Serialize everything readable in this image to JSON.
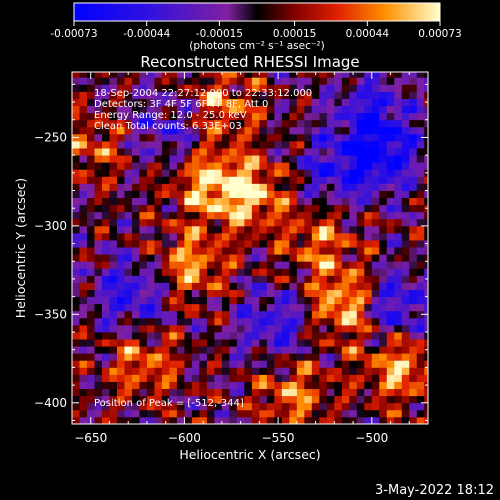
{
  "colorbar": {
    "tick_labels": [
      "-0.00073",
      "-0.00044",
      "-0.00015",
      "0.00015",
      "0.00044",
      "0.00073"
    ],
    "unit_label": "(photons cm⁻² s⁻¹ asec⁻²)"
  },
  "chart_data": {
    "type": "heatmap",
    "title": "Reconstructed RHESSI Image",
    "xlabel": "Heliocentric X (arcsec)",
    "ylabel": "Heliocentric Y (arcsec)",
    "xlim": [
      -660,
      -470
    ],
    "ylim": [
      -412,
      -213
    ],
    "x_ticks": [
      -650,
      -600,
      -550,
      -500
    ],
    "y_ticks": [
      -250,
      -300,
      -350,
      -400
    ],
    "vlim": [
      -0.00073,
      0.00073
    ],
    "grid": false,
    "info_lines": [
      "18-Sep-2004 22:27:12.000 to 22:33:12.000",
      "Detectors: 3F 4F 5F 6F 7F 8F, Att 0",
      "Energy Range: 12.0 - 25.0 keV",
      "Clean      Total counts: 6.33E+03"
    ],
    "peak_label": "Position of Peak = [-512,-344]",
    "peak": [
      -512,
      -344
    ],
    "bright_regions": [
      {
        "x": -512,
        "y": -344,
        "value": 0.00073
      },
      {
        "x": -565,
        "y": -282,
        "value": 0.00058
      },
      {
        "x": -588,
        "y": -275,
        "value": 0.0005
      },
      {
        "x": -580,
        "y": -232,
        "value": 0.00045
      },
      {
        "x": -597,
        "y": -322,
        "value": 0.00052
      },
      {
        "x": -622,
        "y": -378,
        "value": 0.00042
      },
      {
        "x": -542,
        "y": -395,
        "value": 0.00044
      },
      {
        "x": -528,
        "y": -308,
        "value": 0.0004
      },
      {
        "x": -485,
        "y": -380,
        "value": 0.00055
      },
      {
        "x": -650,
        "y": -255,
        "value": 0.00035
      }
    ],
    "dark_regions": [
      {
        "x": -490,
        "y": -345,
        "value": -0.00065
      },
      {
        "x": -495,
        "y": -260,
        "value": -0.0006
      },
      {
        "x": -628,
        "y": -338,
        "value": -0.0005
      },
      {
        "x": -500,
        "y": -235,
        "value": -0.00045
      },
      {
        "x": -552,
        "y": -355,
        "value": -0.00045
      },
      {
        "x": -608,
        "y": -245,
        "value": -0.00038
      },
      {
        "x": -520,
        "y": -270,
        "value": -0.0004
      }
    ]
  },
  "footer": {
    "date": "3-May-2022 18:12"
  }
}
